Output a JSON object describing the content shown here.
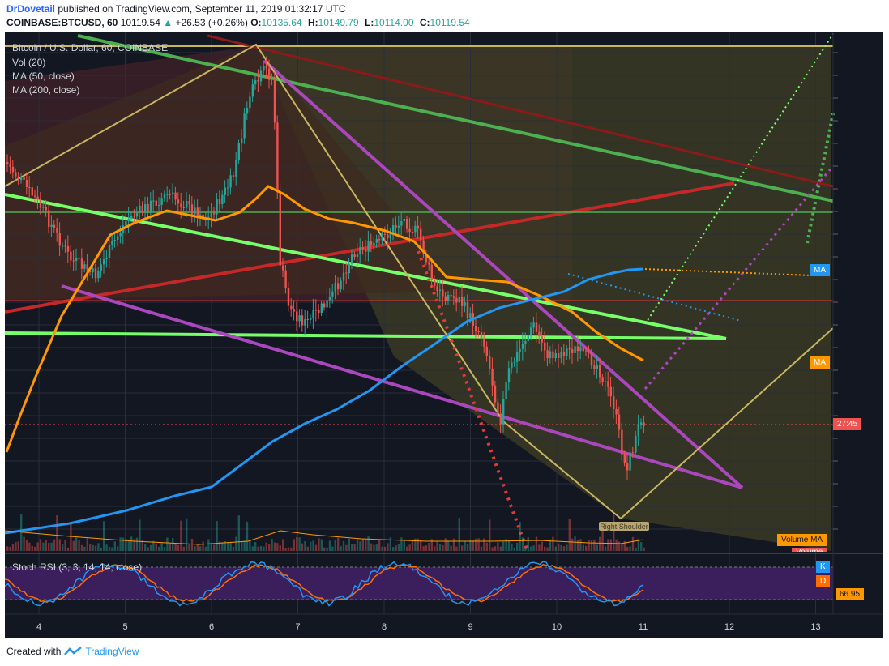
{
  "header": {
    "author": "DrDovetail",
    "published": "published on TradingView.com, September 11, 2019 01:32:17 UTC",
    "symbol": "COINBASE:BTCUSD, 60",
    "price": "10119.54",
    "change": "+26.53 (+0.26%)",
    "open_label": "O:",
    "open": "10135.64",
    "high_label": "H:",
    "high": "10149.79",
    "low_label": "L:",
    "low": "10114.00",
    "close_label": "C:",
    "close": "10119.54"
  },
  "legend": {
    "title": "Bitcoin / U.S. Dollar, 60, COINBASE",
    "vol": "Vol (20)",
    "ma50": "MA (50, close)",
    "ma200": "MA (200, close)",
    "stoch": "Stoch RSI (3, 3, 14, 14, close)"
  },
  "price_scale_tags": {
    "ma_blue": "MA",
    "ma_orange": "MA",
    "countdown": "27:45",
    "volume_ma": "Volume MA",
    "volume": "Volume",
    "stoch_k": "K",
    "stoch_d": "D",
    "stoch_value": "66.95"
  },
  "annotation": {
    "right_shoulder": "Right Shoulder"
  },
  "chart_data": {
    "type": "candlestick",
    "x_ticks": [
      "4",
      "5",
      "6",
      "7",
      "8",
      "9",
      "10",
      "11",
      "12",
      "13"
    ],
    "last_price": 10119.54,
    "stoch_rsi_k": 66.95,
    "colors": {
      "up": "#26a69a",
      "down": "#ef5350",
      "ma50": "#ff9800",
      "ma200": "#2196f3",
      "stoch_k": "#2196f3",
      "stoch_d": "#ff6d00"
    }
  },
  "footer": {
    "created": "Created with",
    "brand": "TradingView"
  }
}
